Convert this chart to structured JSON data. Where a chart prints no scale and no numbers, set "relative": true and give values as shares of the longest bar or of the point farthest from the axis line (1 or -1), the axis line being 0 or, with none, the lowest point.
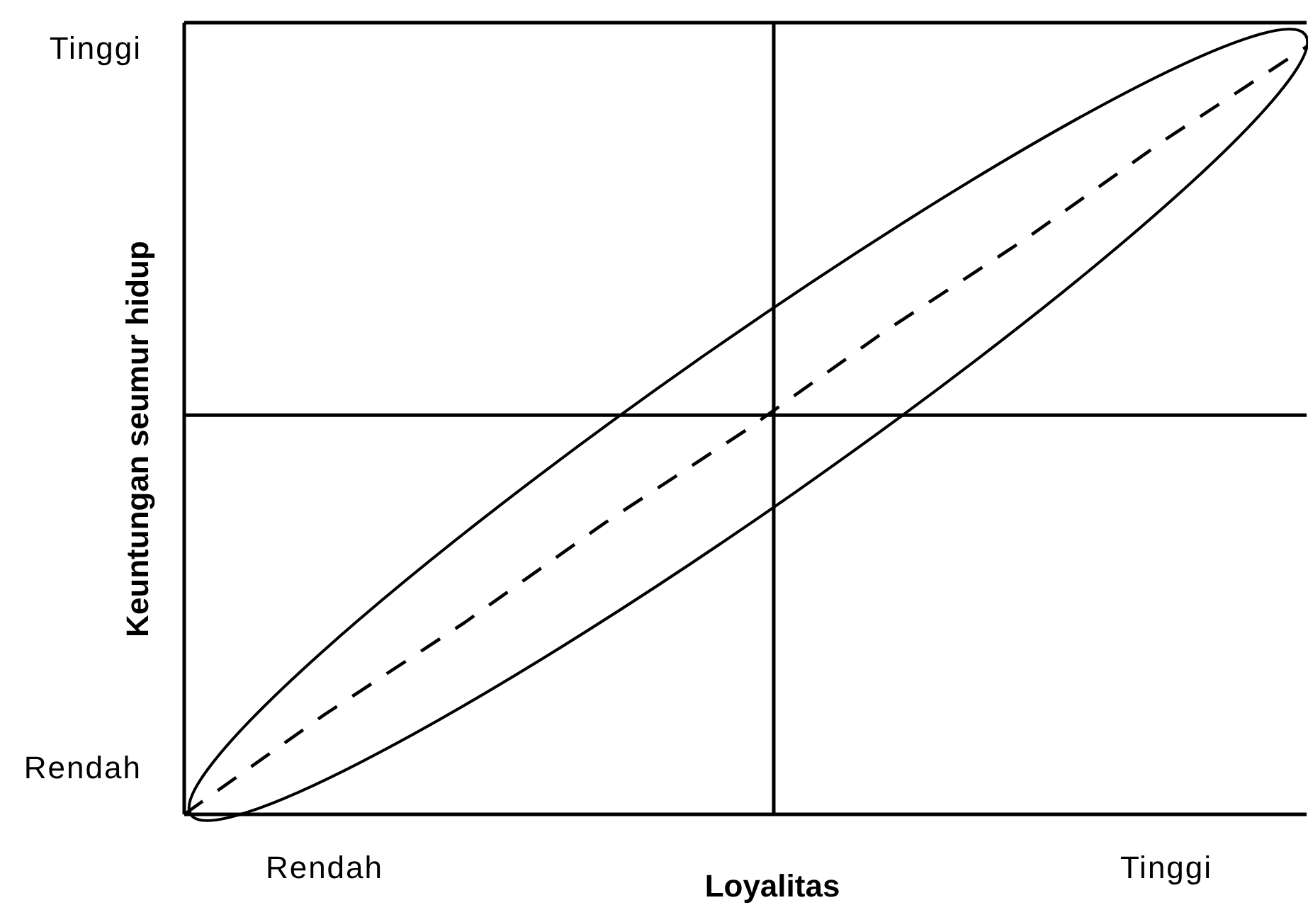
{
  "chart_data": {
    "type": "line",
    "relative": true,
    "xlabel": "Loyalitas",
    "ylabel": "Keuntungan seumur hidup",
    "categories": [
      null,
      "Rendah",
      null,
      null,
      null,
      null,
      null,
      "Tinggi",
      null
    ],
    "values": [
      0,
      0.13,
      0.25,
      0.38,
      0.5,
      0.63,
      0.75,
      0.88,
      1
    ],
    "color": "#000000",
    "line_style": "dashed",
    "ref_lines": [
      {
        "axis": "y",
        "value": 0.52,
        "color": "#000000"
      }
    ],
    "annotations": [
      "Tinggi",
      "Rendah"
    ]
  }
}
